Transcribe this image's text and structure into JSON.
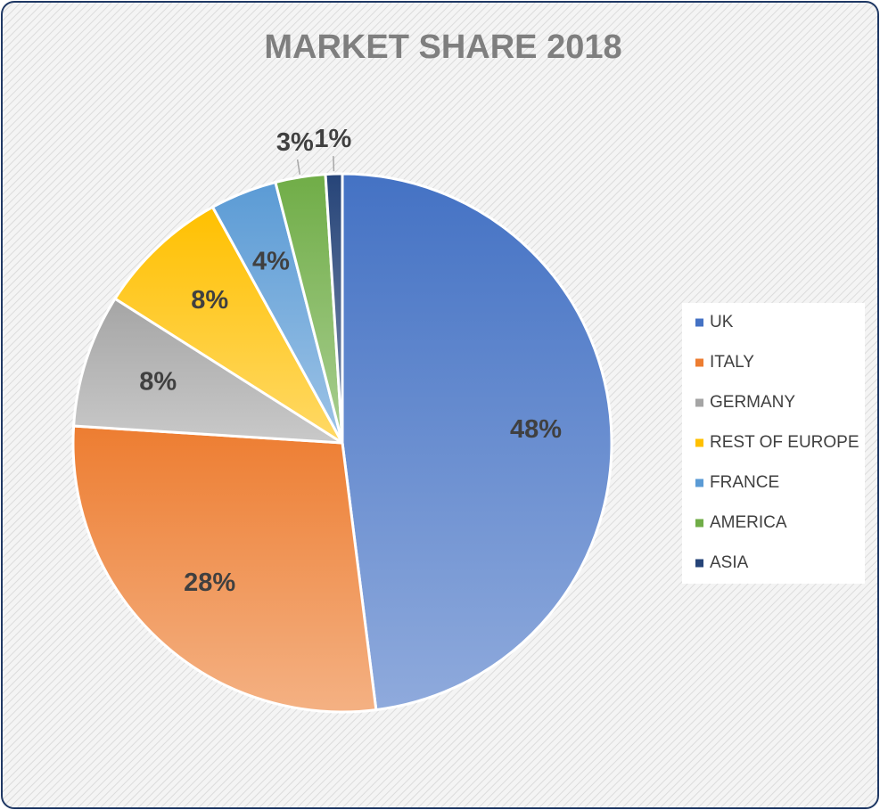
{
  "chart_data": {
    "type": "pie",
    "title": "MARKET SHARE 2018",
    "categories": [
      "UK",
      "ITALY",
      "GERMANY",
      "REST OF EUROPE",
      "FRANCE",
      "AMERICA",
      "ASIA"
    ],
    "values": [
      48,
      28,
      8,
      8,
      4,
      3,
      1
    ],
    "value_labels": [
      "48%",
      "28%",
      "8%",
      "8%",
      "4%",
      "3%",
      "1%"
    ],
    "colors": [
      "#4472c4",
      "#ed7d31",
      "#a5a5a5",
      "#ffc000",
      "#5b9bd5",
      "#70ad47",
      "#264478"
    ],
    "legend": "right"
  }
}
